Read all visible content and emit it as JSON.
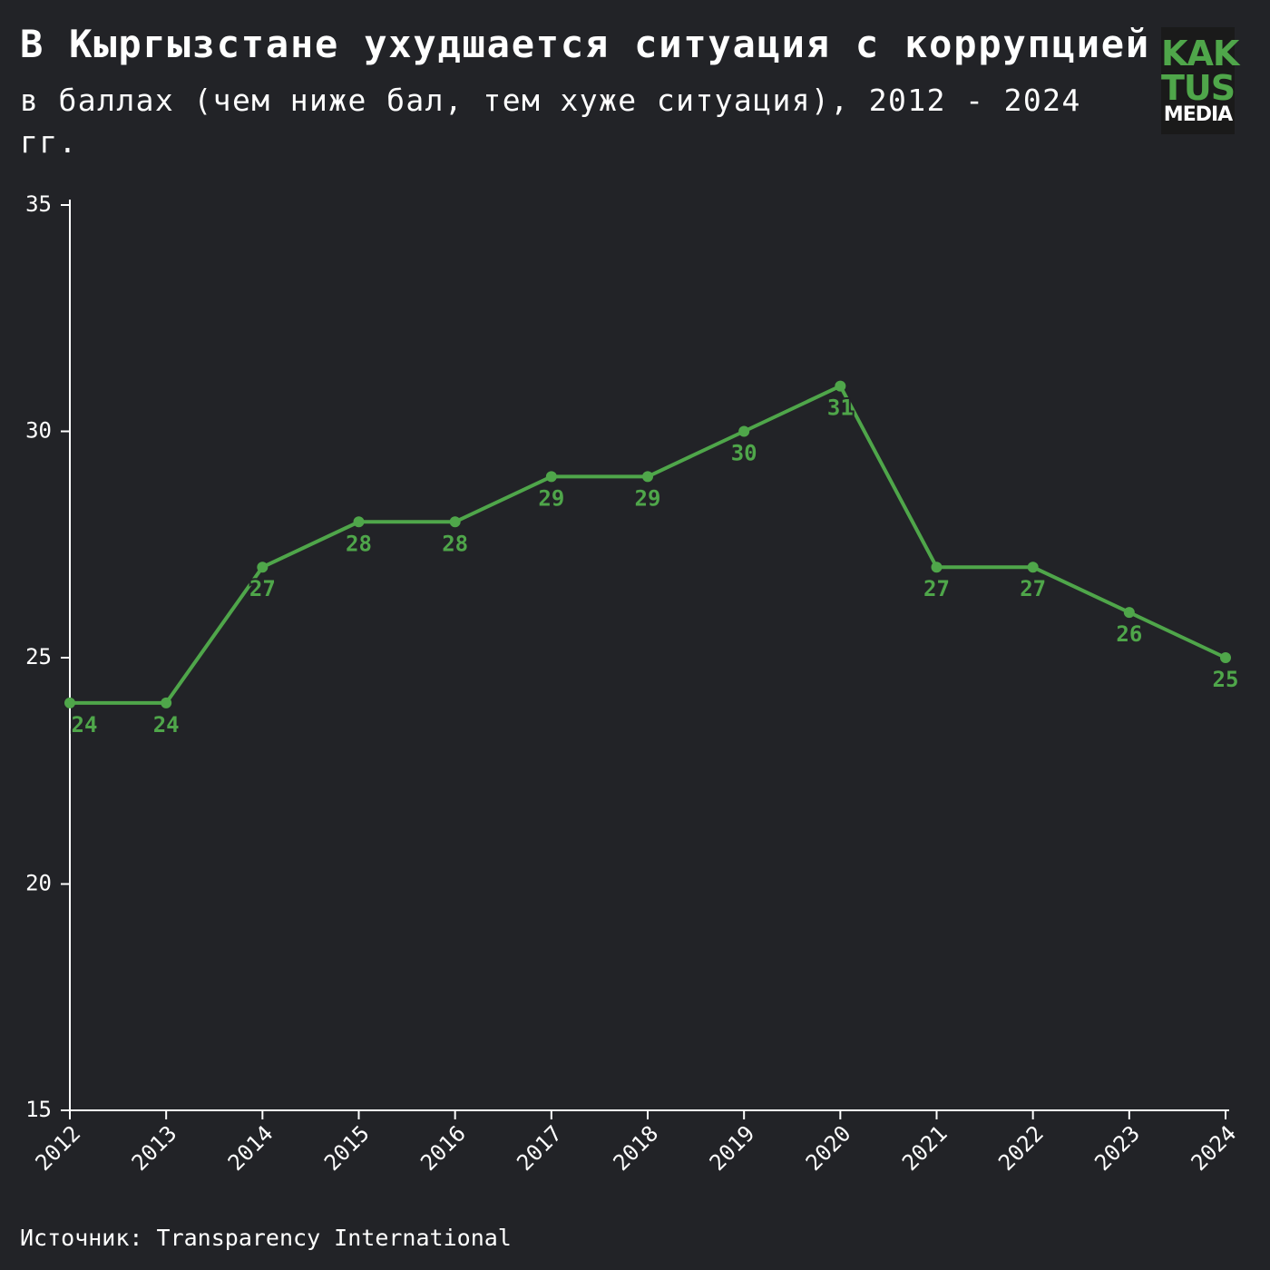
{
  "chart_data": {
    "type": "line",
    "title": "В Кыргызстане ухудшается ситуация с коррупцией",
    "subtitle": "в баллах (чем ниже бал, тем хуже ситуация), 2012 - 2024 гг.",
    "source": "Источник: Transparency International",
    "logo": [
      "KAK",
      "TUS",
      "MEDIA"
    ],
    "x": [
      2012,
      2013,
      2014,
      2015,
      2016,
      2017,
      2018,
      2019,
      2020,
      2021,
      2022,
      2023,
      2024
    ],
    "series": [
      {
        "color": "#4fa64a",
        "values": [
          24,
          24,
          27,
          28,
          28,
          29,
          29,
          30,
          31,
          27,
          27,
          26,
          25
        ]
      }
    ],
    "xlim": [
      2012,
      2024
    ],
    "xticks": [
      2012,
      2013,
      2014,
      2015,
      2016,
      2017,
      2018,
      2019,
      2020,
      2021,
      2022,
      2023,
      2024
    ],
    "ylim": [
      15,
      35
    ],
    "yticks": [
      15,
      20,
      25,
      30,
      35
    ],
    "grid": false
  }
}
